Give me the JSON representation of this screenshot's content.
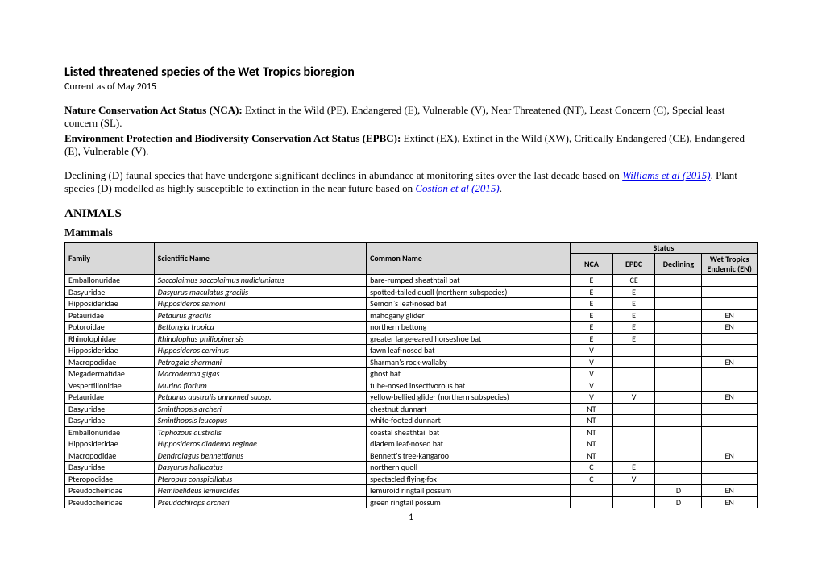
{
  "header": {
    "title": "Listed threatened species of the Wet Tropics bioregion",
    "subtitle": "Current as of May 2015"
  },
  "legend": {
    "nca_label": "Nature Conservation Act Status (NCA):",
    "nca_text": " Extinct in the Wild (PE), Endangered (E), Vulnerable (V), Near Threatened (NT), Least Concern (C), Special least concern (SL).",
    "epbc_label": "Environment Protection and Biodiversity Conservation Act Status (EPBC):",
    "epbc_text": " Extinct (EX), Extinct in the Wild (XW), Critically Endangered (CE), Endangered (E), Vulnerable (V).",
    "declining_pre": "Declining (D) faunal species that have undergone significant declines in abundance at monitoring sites over the last decade based on ",
    "ref1_text": "Williams et al (2015)",
    "declining_post": ". Plant species (D) modelled as highly susceptible to extinction in the near future based on ",
    "ref2_text": "Costion et al (2015)",
    "final_period": "."
  },
  "section": {
    "animals": "ANIMALS",
    "mammals": "Mammals"
  },
  "table": {
    "headers": {
      "family": "Family",
      "scientific": "Scientific Name",
      "common": "Common Name",
      "status_group": "Status",
      "nca": "NCA",
      "epbc": "EPBC",
      "declining": "Declining",
      "endemic": "Wet Tropics Endemic (EN)"
    },
    "rows": [
      {
        "family": "Emballonuridae",
        "sci": "Saccolaimus saccolaimus nudicluniatus",
        "common": "bare-rumped sheathtail bat",
        "nca": "E",
        "epbc": "CE",
        "decl": "",
        "en": ""
      },
      {
        "family": "Dasyuridae",
        "sci": "Dasyurus maculatus gracilis",
        "common": "spotted-tailed quoll (northern subspecies)",
        "nca": "E",
        "epbc": "E",
        "decl": "",
        "en": ""
      },
      {
        "family": "Hipposideridae",
        "sci": "Hipposideros semoni",
        "common": "Semon`s leaf-nosed bat",
        "nca": "E",
        "epbc": "E",
        "decl": "",
        "en": ""
      },
      {
        "family": "Petauridae",
        "sci": "Petaurus gracilis",
        "common": "mahogany glider",
        "nca": "E",
        "epbc": "E",
        "decl": "",
        "en": "EN"
      },
      {
        "family": "Potoroidae",
        "sci": "Bettongia tropica",
        "common": "northern bettong",
        "nca": "E",
        "epbc": "E",
        "decl": "",
        "en": "EN"
      },
      {
        "family": "Rhinolophidae",
        "sci": "Rhinolophus philippinensis",
        "common": "greater large-eared horseshoe bat",
        "nca": "E",
        "epbc": "E",
        "decl": "",
        "en": ""
      },
      {
        "family": "Hipposideridae",
        "sci": "Hipposideros cervinus",
        "common": "fawn leaf-nosed bat",
        "nca": "V",
        "epbc": "",
        "decl": "",
        "en": ""
      },
      {
        "family": "Macropodidae",
        "sci": "Petrogale sharmani",
        "common": "Sharman's rock-wallaby",
        "nca": "V",
        "epbc": "",
        "decl": "",
        "en": "EN"
      },
      {
        "family": "Megadermatidae",
        "sci": "Macroderma gigas",
        "common": "ghost bat",
        "nca": "V",
        "epbc": "",
        "decl": "",
        "en": ""
      },
      {
        "family": "Vespertilionidae",
        "sci": "Murina florium",
        "common": "tube-nosed insectivorous bat",
        "nca": "V",
        "epbc": "",
        "decl": "",
        "en": ""
      },
      {
        "family": "Petauridae",
        "sci": "Petaurus australis unnamed subsp.",
        "common": "yellow-bellied glider (northern subspecies)",
        "nca": "V",
        "epbc": "V",
        "decl": "",
        "en": "EN"
      },
      {
        "family": "Dasyuridae",
        "sci": "Sminthopsis archeri",
        "common": "chestnut dunnart",
        "nca": "NT",
        "epbc": "",
        "decl": "",
        "en": ""
      },
      {
        "family": "Dasyuridae",
        "sci": "Sminthopsis leucopus",
        "common": "white-footed dunnart",
        "nca": "NT",
        "epbc": "",
        "decl": "",
        "en": ""
      },
      {
        "family": "Emballonuridae",
        "sci": "Taphozous australis",
        "common": "coastal sheathtail bat",
        "nca": "NT",
        "epbc": "",
        "decl": "",
        "en": ""
      },
      {
        "family": "Hipposideridae",
        "sci": "Hipposideros diadema reginae",
        "common": "diadem leaf-nosed bat",
        "nca": "NT",
        "epbc": "",
        "decl": "",
        "en": ""
      },
      {
        "family": "Macropodidae",
        "sci": "Dendrolagus bennettianus",
        "common": "Bennett's tree-kangaroo",
        "nca": "NT",
        "epbc": "",
        "decl": "",
        "en": "EN"
      },
      {
        "family": "Dasyuridae",
        "sci": "Dasyurus hallucatus",
        "common": "northern quoll",
        "nca": "C",
        "epbc": "E",
        "decl": "",
        "en": ""
      },
      {
        "family": "Pteropodidae",
        "sci": "Pteropus conspicillatus",
        "common": "spectacled flying-fox",
        "nca": "C",
        "epbc": "V",
        "decl": "",
        "en": ""
      },
      {
        "family": "Pseudocheiridae",
        "sci": "Hemibelideus lemuroides",
        "common": "lemuroid ringtail possum",
        "nca": "",
        "epbc": "",
        "decl": "D",
        "en": "EN"
      },
      {
        "family": "Pseudocheiridae",
        "sci": "Pseudochirops archeri",
        "common": "green ringtail possum",
        "nca": "",
        "epbc": "",
        "decl": "D",
        "en": "EN"
      }
    ]
  },
  "page_number": "1",
  "colors": {
    "header_bg": "#d9d9d9",
    "link": "#0000ee",
    "border": "#000000",
    "text": "#000000",
    "bg": "#ffffff"
  },
  "fonts": {
    "body_family": "Calibri",
    "para_family": "Times New Roman",
    "title_pt": 16,
    "para_pt": 13,
    "table_pt": 10
  }
}
